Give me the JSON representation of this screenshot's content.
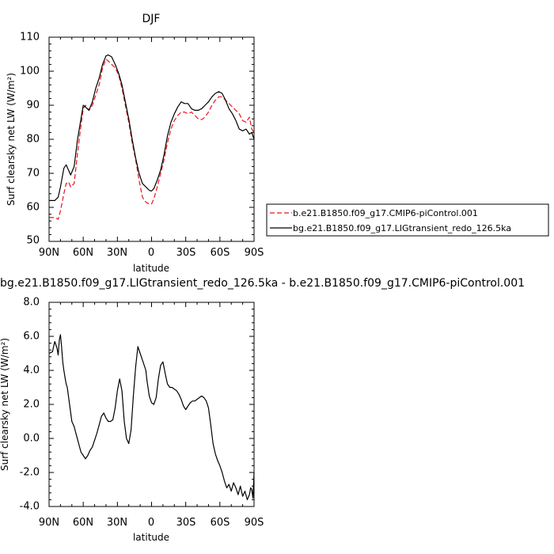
{
  "chart_data": [
    {
      "type": "line",
      "title": "DJF",
      "xlabel": "latitude",
      "ylabel": "Surf clearsky net LW (W/m²)",
      "x_ticks": [
        "90N",
        "60N",
        "30N",
        "0",
        "30S",
        "60S",
        "90S"
      ],
      "y_ticks": [
        "50",
        "60",
        "70",
        "80",
        "90",
        "100",
        "110"
      ],
      "xlim": [
        90,
        -90
      ],
      "ylim": [
        50,
        110
      ],
      "grid": false,
      "legend_position": "right",
      "series": [
        {
          "name": "b.e21.B1850.f09_g17.CMIP6-piControl.001",
          "color": "#e8141c",
          "dash": "dashed",
          "x": [
            90,
            85,
            82,
            80,
            77,
            75,
            73,
            71,
            68,
            65,
            62,
            60,
            58,
            55,
            52,
            49,
            46,
            43,
            40,
            38,
            35,
            32,
            29,
            26,
            23,
            20,
            17,
            14,
            11,
            8,
            5,
            2,
            0,
            -2,
            -5,
            -8,
            -11,
            -14,
            -17,
            -20,
            -23,
            -26,
            -29,
            -32,
            -35,
            -38,
            -41,
            -44,
            -47,
            -50,
            -53,
            -56,
            -59,
            -62,
            -65,
            -68,
            -71,
            -74,
            -77,
            -80,
            -83,
            -86,
            -88,
            -90
          ],
          "y": [
            57,
            57,
            56.5,
            59,
            64,
            67,
            67.5,
            66,
            67,
            76,
            84,
            89,
            90,
            88.5,
            90,
            93,
            96,
            101,
            103.5,
            103,
            102,
            101,
            99,
            95,
            90,
            85,
            79,
            74,
            68,
            63,
            61.5,
            61,
            61,
            62.5,
            66,
            70,
            74,
            79,
            83,
            85.5,
            87,
            88,
            88,
            87.5,
            88,
            87,
            86,
            85.8,
            86.5,
            88,
            90,
            91.5,
            92.5,
            92.5,
            91.5,
            90.5,
            89.5,
            88.5,
            87.5,
            85.5,
            85,
            86.5,
            83,
            82
          ]
        },
        {
          "name": "bg.e21.B1850.f09_g17.LIGtransient_redo_126.5ka",
          "color": "#000000",
          "dash": "solid",
          "x": [
            90,
            85,
            82,
            80,
            77,
            75,
            73,
            71,
            68,
            65,
            62,
            60,
            58,
            55,
            52,
            49,
            46,
            43,
            40,
            38,
            35,
            32,
            29,
            26,
            23,
            20,
            17,
            14,
            11,
            8,
            5,
            2,
            0,
            -2,
            -5,
            -8,
            -11,
            -14,
            -17,
            -20,
            -23,
            -26,
            -29,
            -32,
            -35,
            -38,
            -41,
            -44,
            -47,
            -50,
            -53,
            -56,
            -59,
            -62,
            -65,
            -68,
            -71,
            -74,
            -77,
            -80,
            -83,
            -86,
            -88,
            -90
          ],
          "y": [
            62,
            62,
            63,
            66,
            71.5,
            72.5,
            71,
            69.5,
            72,
            80,
            86,
            90,
            89.5,
            88.5,
            91,
            95,
            98,
            102,
            104.5,
            104.8,
            104.2,
            102,
            99.5,
            96,
            91,
            86,
            80,
            74.5,
            70,
            67,
            66,
            65,
            64.8,
            65.5,
            68,
            71,
            75.5,
            81,
            85,
            87.5,
            89.5,
            91,
            90.5,
            90.5,
            89,
            88.5,
            88.5,
            89,
            90,
            91,
            92.5,
            93.5,
            94,
            93.5,
            91.5,
            89,
            87.5,
            85.5,
            83,
            82.5,
            83,
            81.5,
            82,
            80
          ]
        }
      ]
    },
    {
      "type": "line",
      "title": "bg.e21.B1850.f09_g17.LIGtransient_redo_126.5ka - b.e21.B1850.f09_g17.CMIP6-piControl.001",
      "xlabel": "latitude",
      "ylabel": "Surf clearsky net LW (W/m²)",
      "x_ticks": [
        "90N",
        "60N",
        "30N",
        "0",
        "30S",
        "60S",
        "90S"
      ],
      "y_ticks": [
        "-4.0",
        "-2.0",
        "0.0",
        "2.0",
        "4.0",
        "6.0",
        "8.0"
      ],
      "xlim": [
        90,
        -90
      ],
      "ylim": [
        -4,
        8
      ],
      "grid": false,
      "series": [
        {
          "color": "#000000",
          "dash": "solid",
          "x": [
            90,
            87,
            85,
            83,
            82,
            81,
            80,
            79,
            78,
            77,
            76,
            75,
            74,
            72,
            70,
            68,
            66,
            64,
            62,
            60,
            58,
            56,
            54,
            52,
            50,
            48,
            46,
            44,
            42,
            40,
            38,
            36,
            34,
            32,
            30,
            28,
            26,
            24,
            22,
            20,
            18,
            16,
            14,
            12,
            10,
            8,
            6,
            5,
            4,
            2,
            0,
            -2,
            -4,
            -6,
            -8,
            -10,
            -12,
            -14,
            -16,
            -18,
            -20,
            -22,
            -24,
            -26,
            -28,
            -30,
            -32,
            -34,
            -36,
            -38,
            -40,
            -42,
            -44,
            -46,
            -48,
            -50,
            -52,
            -54,
            -56,
            -58,
            -60,
            -62,
            -64,
            -66,
            -68,
            -70,
            -72,
            -74,
            -76,
            -78,
            -80,
            -82,
            -84,
            -86,
            -87,
            -88,
            -89,
            -90
          ],
          "y": [
            5.0,
            5.1,
            5.7,
            5.3,
            4.9,
            5.8,
            6.1,
            5.4,
            4.5,
            4.0,
            3.6,
            3.2,
            3.0,
            2.0,
            1.0,
            0.7,
            0.2,
            -0.3,
            -0.8,
            -1.0,
            -1.2,
            -1.0,
            -0.7,
            -0.5,
            -0.1,
            0.3,
            0.8,
            1.3,
            1.5,
            1.2,
            1.0,
            1.0,
            1.1,
            1.8,
            2.8,
            3.5,
            2.8,
            1.0,
            0.0,
            -0.3,
            0.5,
            2.5,
            4.2,
            5.4,
            5.0,
            4.6,
            4.2,
            4.0,
            3.4,
            2.5,
            2.1,
            2.0,
            2.4,
            3.5,
            4.3,
            4.5,
            3.8,
            3.2,
            3.0,
            3.0,
            2.9,
            2.8,
            2.6,
            2.3,
            1.9,
            1.7,
            1.9,
            2.1,
            2.2,
            2.2,
            2.3,
            2.4,
            2.5,
            2.4,
            2.2,
            1.8,
            0.8,
            -0.3,
            -0.9,
            -1.3,
            -1.6,
            -2.0,
            -2.5,
            -2.9,
            -2.7,
            -3.1,
            -2.6,
            -2.9,
            -3.3,
            -2.8,
            -3.4,
            -3.1,
            -3.6,
            -3.3,
            -2.9,
            -3.0,
            -3.5,
            -2.0
          ]
        }
      ]
    }
  ]
}
